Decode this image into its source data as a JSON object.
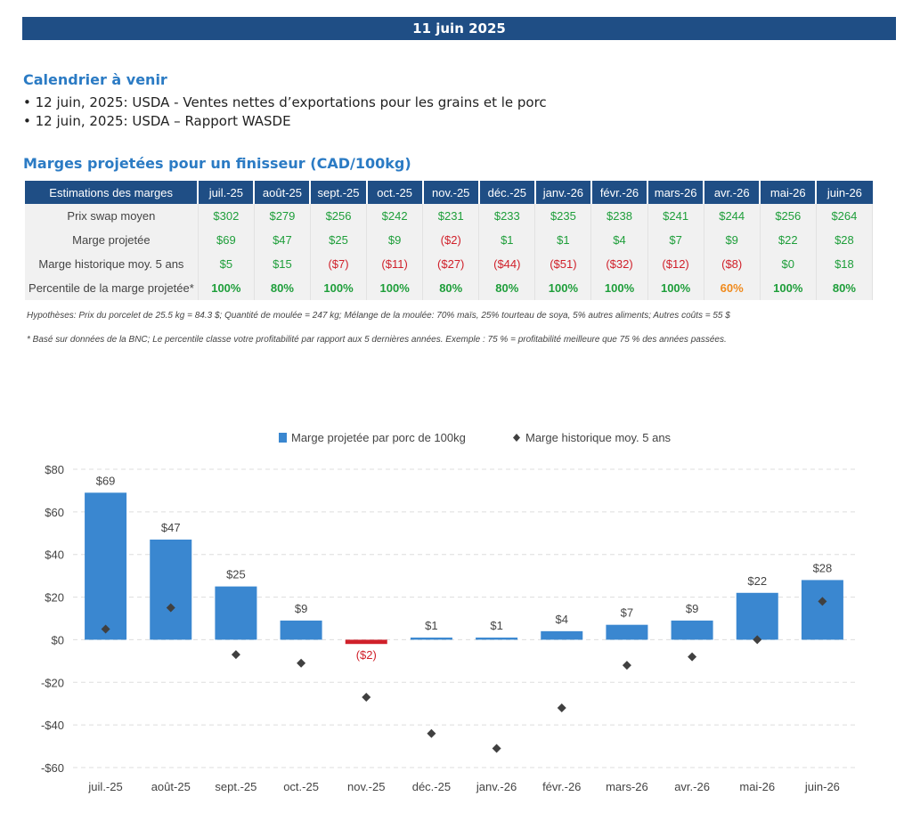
{
  "header": {
    "date": "11 juin 2025"
  },
  "calendar": {
    "title": "Calendrier à venir",
    "items": [
      "12 juin, 2025: USDA - Ventes nettes d’exportations pour les grains et le porc",
      "12 juin, 2025: USDA – Rapport WASDE"
    ]
  },
  "margins": {
    "title": "Marges projetées pour un finisseur (CAD/100kg)",
    "header_label": "Estimations des marges",
    "months": [
      "juil.-25",
      "août-25",
      "sept.-25",
      "oct.-25",
      "nov.-25",
      "déc.-25",
      "janv.-26",
      "févr.-26",
      "mars-26",
      "avr.-26",
      "mai-26",
      "juin-26"
    ],
    "rows": [
      {
        "label": "Prix swap moyen",
        "cells": [
          "$302",
          "$279",
          "$256",
          "$242",
          "$231",
          "$233",
          "$235",
          "$238",
          "$241",
          "$244",
          "$256",
          "$264"
        ],
        "styles": [
          "pos",
          "pos",
          "pos",
          "pos",
          "pos",
          "pos",
          "pos",
          "pos",
          "pos",
          "pos",
          "pos",
          "pos"
        ],
        "bold": false
      },
      {
        "label": "Marge projetée",
        "cells": [
          "$69",
          "$47",
          "$25",
          "$9",
          "($2)",
          "$1",
          "$1",
          "$4",
          "$7",
          "$9",
          "$22",
          "$28"
        ],
        "styles": [
          "pos",
          "pos",
          "pos",
          "pos",
          "neg",
          "pos",
          "pos",
          "pos",
          "pos",
          "pos",
          "pos",
          "pos"
        ],
        "bold": false
      },
      {
        "label": "Marge historique moy. 5 ans",
        "cells": [
          "$5",
          "$15",
          "($7)",
          "($11)",
          "($27)",
          "($44)",
          "($51)",
          "($32)",
          "($12)",
          "($8)",
          "$0",
          "$18"
        ],
        "styles": [
          "pos",
          "pos",
          "neg",
          "neg",
          "neg",
          "neg",
          "neg",
          "neg",
          "neg",
          "neg",
          "pos",
          "pos"
        ],
        "bold": false
      },
      {
        "label": "Percentile de la marge projetée*",
        "cells": [
          "100%",
          "80%",
          "100%",
          "100%",
          "80%",
          "80%",
          "100%",
          "100%",
          "100%",
          "60%",
          "100%",
          "80%"
        ],
        "styles": [
          "pos",
          "pos",
          "pos",
          "pos",
          "pos",
          "pos",
          "pos",
          "pos",
          "pos",
          "orange",
          "pos",
          "pos"
        ],
        "bold": true
      }
    ]
  },
  "notes": {
    "hypotheses": "Hypothèses: Prix du porcelet de 25.5 kg = 84.3 $; Quantité de moulée = 247 kg; Mélange de la moulée: 70% maïs, 25% tourteau de soya, 5% autres aliments; Autres coûts = 55 $",
    "footnote": "* Basé sur données de la BNC; Le percentile classe votre profitabilité par rapport aux 5 dernières années. Exemple : 75 % = profitabilité meilleure que 75 % des années passées."
  },
  "chart_data": {
    "type": "bar",
    "categories": [
      "juil.-25",
      "août-25",
      "sept.-25",
      "oct.-25",
      "nov.-25",
      "déc.-25",
      "janv.-26",
      "févr.-26",
      "mars-26",
      "avr.-26",
      "mai-26",
      "juin-26"
    ],
    "series": [
      {
        "name": "Marge projetée par porc de 100kg",
        "type": "bar",
        "values": [
          69,
          47,
          25,
          9,
          -2,
          1,
          1,
          4,
          7,
          9,
          22,
          28
        ],
        "labels": [
          "$69",
          "$47",
          "$25",
          "$9",
          "($2)",
          "$1",
          "$1",
          "$4",
          "$7",
          "$9",
          "$22",
          "$28"
        ],
        "color": "#3a87d0",
        "negative_color": "#d0202a"
      },
      {
        "name": "Marge historique moy. 5 ans",
        "type": "scatter",
        "values": [
          5,
          15,
          -7,
          -11,
          -27,
          -44,
          -51,
          -32,
          -12,
          -8,
          0,
          18
        ],
        "color": "#404040"
      }
    ],
    "ylim": [
      -60,
      80
    ],
    "yticks": [
      80,
      60,
      40,
      20,
      0,
      -20,
      -40,
      -60
    ],
    "ytick_labels": [
      "$80",
      "$60",
      "$40",
      "$20",
      "$0",
      "-$20",
      "-$40",
      "-$60"
    ],
    "grid": true,
    "legend": "top-center"
  }
}
